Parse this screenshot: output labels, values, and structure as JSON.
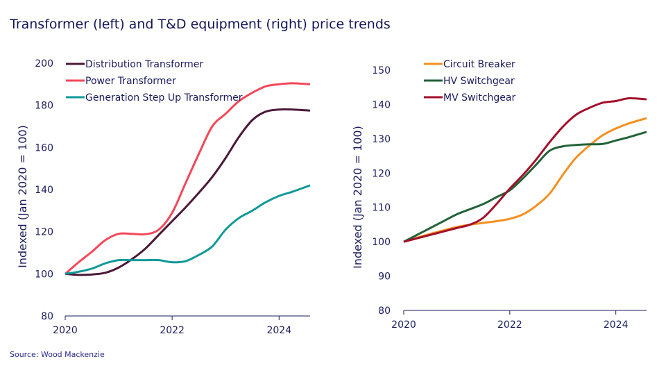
{
  "title": "Transformer (left) and T&D equipment (right) price trends",
  "source": "Source: Wood Mackenzie",
  "chart_data": [
    {
      "type": "line",
      "ylabel": "Indexed (Jan 2020 = 100)",
      "ylim": [
        80,
        200
      ],
      "yticks": [
        80,
        100,
        120,
        140,
        160,
        180,
        200
      ],
      "xlim": [
        2020,
        2024.58
      ],
      "xticks": [
        2020,
        2022,
        2024
      ],
      "legend": "top-left",
      "grid": false,
      "x": [
        2020,
        2020.25,
        2020.5,
        2020.75,
        2021,
        2021.25,
        2021.5,
        2021.75,
        2022,
        2022.25,
        2022.5,
        2022.75,
        2023,
        2023.25,
        2023.5,
        2023.75,
        2024,
        2024.25,
        2024.58
      ],
      "series": [
        {
          "name": "Distribution Transformer",
          "color": "#4b1838",
          "values": [
            100,
            99.5,
            99.7,
            100.5,
            103,
            107,
            112,
            118.5,
            125,
            131.5,
            138.5,
            146,
            155,
            165,
            173,
            177,
            178,
            178,
            177.5
          ]
        },
        {
          "name": "Power Transformer",
          "color": "#f5475a",
          "values": [
            100,
            105.5,
            110.5,
            116,
            119,
            119,
            118.8,
            121,
            129,
            143,
            157,
            170,
            176,
            182,
            186,
            189,
            190,
            190.5,
            190
          ]
        },
        {
          "name": "Generation Step Up Transformer",
          "color": "#10999a",
          "values": [
            100,
            101,
            102.5,
            105,
            106.5,
            106.5,
            106.5,
            106.5,
            105.5,
            106,
            109,
            113,
            121,
            126.5,
            130,
            134,
            137,
            139,
            142
          ]
        }
      ]
    },
    {
      "type": "line",
      "ylabel": "Indexed (Jan 2020 = 100)",
      "ylim": [
        80,
        150
      ],
      "yticks": [
        80,
        90,
        100,
        110,
        120,
        130,
        140,
        150
      ],
      "xlim": [
        2020,
        2024.58
      ],
      "xticks": [
        2020,
        2022,
        2024
      ],
      "legend": "top-left",
      "grid": false,
      "x": [
        2020,
        2020.25,
        2020.5,
        2020.75,
        2021,
        2021.25,
        2021.5,
        2021.75,
        2022,
        2022.25,
        2022.5,
        2022.75,
        2023,
        2023.25,
        2023.5,
        2023.75,
        2024,
        2024.25,
        2024.58
      ],
      "series": [
        {
          "name": "Circuit Breaker",
          "color": "#f39020",
          "values": [
            100,
            101.2,
            102.3,
            103.3,
            104.3,
            105,
            105.5,
            106,
            106.7,
            108,
            110.5,
            114,
            119.5,
            124.5,
            128,
            131,
            133,
            134.5,
            136
          ]
        },
        {
          "name": "HV Switchgear",
          "color": "#236238",
          "values": [
            100,
            102,
            104,
            106,
            108,
            109.5,
            111,
            113,
            115,
            118.5,
            122.5,
            126.5,
            127.8,
            128.2,
            128.4,
            128.5,
            129.5,
            130.5,
            132
          ]
        },
        {
          "name": "MV Switchgear",
          "color": "#a3102a",
          "values": [
            100,
            101,
            102,
            103,
            104,
            105,
            107,
            111,
            115.5,
            119.5,
            124,
            129,
            133.5,
            137,
            139,
            140.5,
            141,
            141.8,
            141.5
          ]
        }
      ]
    }
  ]
}
